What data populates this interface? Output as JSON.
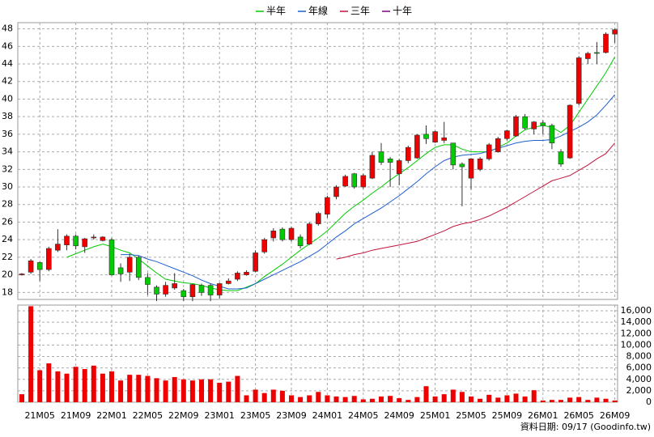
{
  "chart_data": {
    "type": "candlestick",
    "categories": [
      null,
      null,
      "21M05",
      null,
      null,
      null,
      "21M09",
      null,
      null,
      null,
      "22M01",
      null,
      null,
      null,
      "22M05",
      null,
      null,
      null,
      "22M09",
      null,
      null,
      null,
      "23M01",
      null,
      null,
      null,
      "23M05",
      null,
      null,
      null,
      "23M09",
      null,
      null,
      null,
      "24M01",
      null,
      null,
      null,
      "24M05",
      null,
      null,
      null,
      "24M09",
      null,
      null,
      null,
      "25M01",
      null,
      null,
      null,
      "25M05",
      null,
      null,
      null,
      "25M09",
      null,
      null,
      null,
      "26M01",
      null,
      null,
      null,
      "26M05",
      null,
      null,
      null,
      "26M09"
    ],
    "open": [
      20.0,
      20.3,
      21.4,
      20.6,
      22.8,
      23.4,
      24.4,
      23.2,
      24.2,
      23.9,
      24.0,
      20.8,
      20.3,
      22.0,
      19.7,
      18.6,
      17.8,
      18.5,
      18.2,
      17.5,
      18.8,
      18.8,
      17.7,
      19.0,
      19.5,
      20.0,
      20.4,
      22.6,
      24.2,
      25.2,
      24.0,
      24.3,
      23.5,
      25.8,
      26.9,
      28.9,
      30.1,
      31.5,
      30.0,
      31.0,
      34.0,
      33.2,
      31.5,
      33.0,
      33.3,
      36.0,
      35.1,
      35.3,
      35.0,
      32.6,
      31.0,
      32.0,
      33.2,
      34.0,
      35.5,
      35.8,
      38.0,
      36.6,
      37.3,
      37.0,
      34.0,
      33.3,
      39.5,
      44.6,
      45.3,
      45.3,
      47.4
    ],
    "high": [
      20.2,
      21.8,
      21.5,
      23.2,
      25.2,
      24.6,
      24.6,
      24.2,
      24.6,
      24.4,
      24.2,
      21.3,
      22.4,
      22.2,
      20.2,
      18.8,
      19.2,
      20.2,
      18.4,
      19.0,
      19.0,
      19.0,
      19.1,
      19.6,
      20.4,
      20.5,
      22.8,
      24.2,
      25.3,
      25.4,
      25.5,
      24.6,
      26.0,
      27.2,
      29.0,
      30.2,
      31.4,
      31.6,
      31.5,
      34.0,
      35.0,
      33.4,
      33.2,
      34.7,
      36.0,
      37.0,
      36.4,
      37.4,
      35.0,
      32.8,
      33.3,
      33.4,
      35.0,
      35.7,
      36.5,
      38.2,
      38.3,
      37.5,
      37.6,
      37.2,
      34.3,
      39.4,
      44.9,
      45.4,
      46.5,
      47.6,
      48.0
    ],
    "low": [
      19.9,
      20.1,
      19.3,
      20.4,
      22.6,
      22.8,
      22.9,
      22.5,
      24.0,
      23.8,
      19.9,
      19.2,
      19.3,
      19.4,
      17.7,
      17.0,
      17.5,
      18.3,
      17.0,
      17.0,
      17.6,
      17.0,
      17.3,
      18.9,
      19.3,
      19.9,
      20.3,
      22.4,
      23.8,
      23.8,
      23.8,
      23.0,
      23.4,
      25.6,
      26.5,
      28.6,
      30.0,
      29.8,
      29.8,
      30.9,
      32.5,
      30.0,
      30.2,
      32.7,
      33.2,
      34.9,
      35.0,
      35.0,
      32.0,
      27.8,
      29.7,
      31.8,
      33.0,
      33.9,
      35.3,
      35.7,
      36.5,
      36.0,
      36.0,
      34.3,
      32.3,
      33.2,
      39.3,
      44.0,
      44.0,
      45.2,
      46.4
    ],
    "close": [
      20.1,
      21.6,
      20.6,
      23.0,
      23.5,
      24.4,
      23.3,
      24.1,
      24.3,
      24.3,
      20.0,
      20.1,
      22.0,
      19.7,
      18.9,
      17.8,
      18.8,
      19.0,
      17.5,
      18.9,
      18.0,
      17.7,
      19.0,
      19.3,
      20.2,
      20.3,
      22.5,
      24.0,
      25.0,
      24.0,
      25.3,
      23.3,
      25.8,
      27.0,
      28.8,
      30.0,
      31.2,
      30.0,
      31.3,
      33.6,
      32.8,
      32.8,
      33.0,
      34.5,
      35.9,
      35.5,
      36.3,
      35.6,
      32.5,
      32.3,
      33.2,
      33.2,
      34.8,
      35.5,
      36.4,
      38.0,
      36.7,
      37.4,
      37.0,
      35.0,
      32.6,
      39.3,
      44.7,
      45.2,
      45.2,
      47.4,
      47.9
    ],
    "colors": {
      "up": "#ee0000",
      "down": "#00cc00"
    },
    "ylim": [
      17.2,
      48.7
    ],
    "yticks": [
      18,
      20,
      22,
      24,
      26,
      28,
      30,
      32,
      34,
      36,
      38,
      40,
      42,
      44,
      46,
      48
    ],
    "grid": true,
    "series": [
      {
        "name": "半年",
        "color": "#00cc00",
        "values": [
          null,
          null,
          null,
          null,
          null,
          22.0,
          22.4,
          22.8,
          23.2,
          23.5,
          23.2,
          22.8,
          22.5,
          21.8,
          21.0,
          20.2,
          19.5,
          19.3,
          19.1,
          19.0,
          18.8,
          18.5,
          18.3,
          18.2,
          18.2,
          18.6,
          19.0,
          19.8,
          20.5,
          21.2,
          22.0,
          22.8,
          23.5,
          24.2,
          25.0,
          26.0,
          27.0,
          27.8,
          28.5,
          29.3,
          30.0,
          30.8,
          31.5,
          32.2,
          33.0,
          33.8,
          34.5,
          34.8,
          34.8,
          34.3,
          34.0,
          34.0,
          34.0,
          34.5,
          35.0,
          35.8,
          36.5,
          36.8,
          37.0,
          36.8,
          36.2,
          37.0,
          38.5,
          40.0,
          41.5,
          43.0,
          44.8
        ]
      },
      {
        "name": "年線",
        "color": "#1f5fd0",
        "values": [
          null,
          null,
          null,
          null,
          null,
          null,
          null,
          null,
          null,
          null,
          null,
          22.3,
          22.3,
          22.2,
          21.8,
          21.5,
          21.1,
          20.7,
          20.3,
          19.9,
          19.4,
          19.0,
          18.7,
          18.4,
          18.4,
          18.5,
          19.0,
          19.5,
          20.0,
          20.5,
          21.0,
          21.5,
          22.1,
          22.7,
          23.5,
          24.3,
          25.0,
          25.8,
          26.4,
          27.0,
          27.6,
          28.3,
          29.0,
          29.8,
          30.6,
          31.5,
          32.3,
          33.0,
          33.4,
          33.6,
          33.7,
          33.8,
          34.1,
          34.4,
          34.7,
          35.0,
          35.2,
          35.3,
          35.3,
          35.4,
          35.8,
          36.3,
          36.8,
          37.4,
          38.2,
          39.3,
          40.5
        ]
      },
      {
        "name": "三年",
        "color": "#c0143c",
        "values": [
          null,
          null,
          null,
          null,
          null,
          null,
          null,
          null,
          null,
          null,
          null,
          null,
          null,
          null,
          null,
          null,
          null,
          null,
          null,
          null,
          null,
          null,
          null,
          null,
          null,
          null,
          null,
          null,
          null,
          null,
          null,
          null,
          null,
          null,
          null,
          21.8,
          22.0,
          22.3,
          22.5,
          22.8,
          23.0,
          23.2,
          23.4,
          23.6,
          23.8,
          24.2,
          24.6,
          25.0,
          25.5,
          25.8,
          26.0,
          26.3,
          26.7,
          27.2,
          27.7,
          28.3,
          28.9,
          29.5,
          30.1,
          30.7,
          31.0,
          31.3,
          31.9,
          32.5,
          33.2,
          33.8,
          35.0
        ]
      },
      {
        "name": "十年",
        "color": "#800080",
        "values": [
          null,
          null,
          null,
          null,
          null,
          null,
          null,
          null,
          null,
          null,
          null,
          null,
          null,
          null,
          null,
          null,
          null,
          null,
          null,
          null,
          null,
          null,
          null,
          null,
          null,
          null,
          null,
          null,
          null,
          null,
          null,
          null,
          null,
          null,
          null,
          null,
          null,
          null,
          null,
          null,
          null,
          null,
          null,
          null,
          null,
          null,
          null,
          null,
          null,
          null,
          null,
          null,
          null,
          null,
          null,
          null,
          null,
          null,
          null,
          null,
          null,
          null,
          null,
          null,
          null,
          null,
          null
        ]
      }
    ],
    "volume": {
      "color": "#ee0000",
      "values": [
        1400,
        16800,
        5600,
        6800,
        5400,
        5000,
        6200,
        5800,
        6400,
        5000,
        5400,
        3800,
        4800,
        4800,
        4600,
        4200,
        3800,
        4400,
        4000,
        3800,
        4000,
        4000,
        3400,
        3600,
        4600,
        1200,
        2200,
        1600,
        2200,
        2000,
        1200,
        900,
        1200,
        1800,
        1200,
        1000,
        900,
        1100,
        500,
        600,
        1000,
        1100,
        700,
        400,
        900,
        2800,
        1000,
        1400,
        2200,
        1800,
        1000,
        600,
        1300,
        800,
        1200,
        1500,
        1000,
        2100,
        300,
        400,
        400,
        800,
        900,
        400,
        800,
        600,
        300
      ],
      "ylim": [
        0,
        17000
      ],
      "yticks": [
        0,
        {
          "value": 2000,
          "label": "2,000"
        },
        {
          "value": 4000,
          "label": "4,000"
        },
        {
          "value": 6000,
          "label": "6,000"
        },
        {
          "value": 8000,
          "label": "8,000"
        },
        {
          "value": 10000,
          "label": "10,000"
        },
        {
          "value": 12000,
          "label": "12,000"
        },
        {
          "value": 14000,
          "label": "14,000"
        },
        {
          "value": 16000,
          "label": "16,000"
        }
      ]
    },
    "footer": "資料日期: 09/17  (Goodinfo.tw)"
  }
}
